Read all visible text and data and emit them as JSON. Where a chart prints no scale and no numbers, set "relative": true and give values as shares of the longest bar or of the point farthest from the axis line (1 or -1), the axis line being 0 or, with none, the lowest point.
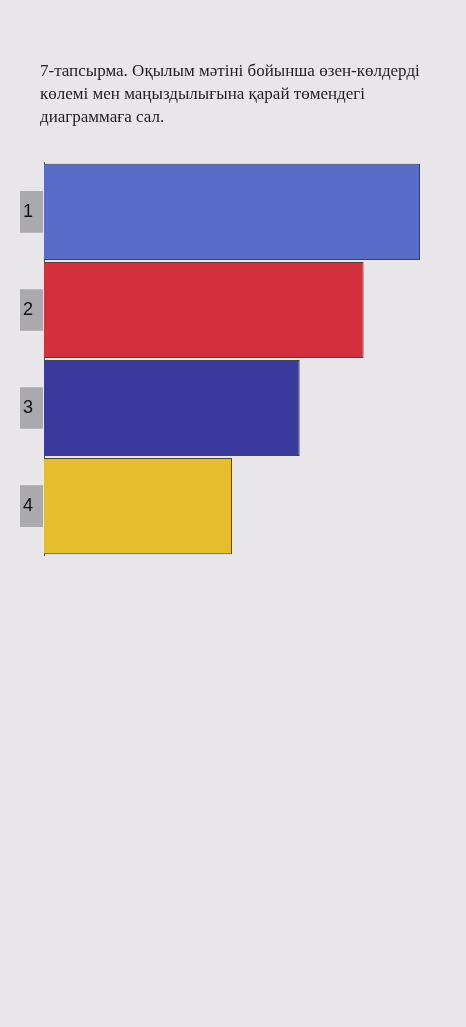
{
  "chart_data": {
    "type": "bar",
    "orientation": "horizontal",
    "relative": true,
    "title": "7-тапсырма. Оқылым мәтіні бойынша өзен-көлдерді көлемі мен маңыздылығына қарай төмендегі диаграммаға сал.",
    "categories": [
      "1",
      "2",
      "3",
      "4"
    ],
    "values": [
      1,
      0.85,
      0.68,
      0.5
    ],
    "colors": [
      "#5a6cc8",
      "#d42f3c",
      "#3a3a9c",
      "#e6bd2c"
    ],
    "legend": false
  }
}
